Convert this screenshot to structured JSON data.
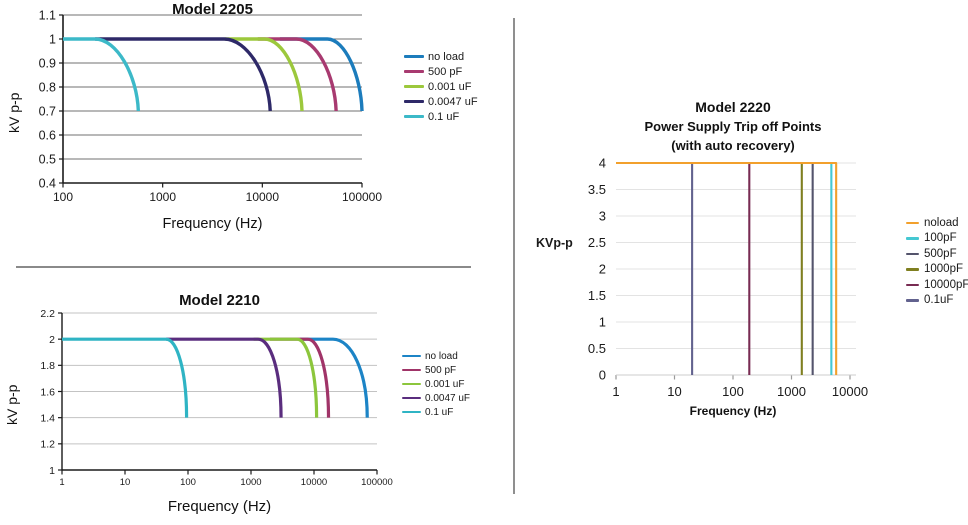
{
  "chart_data": [
    {
      "type": "line",
      "title": "Model 2205",
      "ylabel": "kV p-p",
      "xlabel": "Frequency (Hz)",
      "x_scale": "log",
      "xlim": [
        100,
        100000
      ],
      "ylim": [
        0.4,
        1.1
      ],
      "y_ticks": [
        1.1,
        1,
        0.9,
        0.8,
        0.7,
        0.6,
        0.5,
        0.4
      ],
      "x_ticks": [
        100,
        1000,
        10000,
        100000
      ],
      "grid": "horizontal",
      "legend_position": "right",
      "series": [
        {
          "name": "no load",
          "color": "#1C7CBC",
          "shape": "drop",
          "flat_from": 15000,
          "knee": 45000,
          "drop_to": 100000,
          "y_top": 1.0,
          "y_bottom": 0.7
        },
        {
          "name": "500 pF",
          "color": "#A83A70",
          "shape": "drop",
          "flat_from": 9000,
          "knee": 22000,
          "drop_to": 55000,
          "y_top": 1.0,
          "y_bottom": 0.7
        },
        {
          "name": "0.001 uF",
          "color": "#9CC83C",
          "shape": "drop",
          "flat_from": 4200,
          "knee": 10500,
          "drop_to": 25000,
          "y_top": 1.0,
          "y_bottom": 0.7
        },
        {
          "name": "0.0047 uF",
          "color": "#2E2968",
          "shape": "drop",
          "flat_from": 210,
          "knee": 4150,
          "drop_to": 12000,
          "y_top": 1.0,
          "y_bottom": 0.7
        },
        {
          "name": "0.1 uF",
          "color": "#3CB9C8",
          "shape": "drop",
          "flat_from": 100,
          "knee": 210,
          "drop_to": 570,
          "y_top": 1.0,
          "y_bottom": 0.7
        }
      ]
    },
    {
      "type": "line",
      "title": "Model 2210",
      "ylabel": "kV p-p",
      "xlabel": "Frequency (Hz)",
      "x_scale": "log",
      "xlim": [
        1,
        100000
      ],
      "ylim": [
        1,
        2.2
      ],
      "y_ticks": [
        2.2,
        2,
        1.8,
        1.6,
        1.4,
        1.2,
        1
      ],
      "x_ticks": [
        1,
        10,
        100,
        1000,
        10000,
        100000
      ],
      "grid": "horizontal",
      "legend_position": "right",
      "series": [
        {
          "name": "no load",
          "color": "#1C84C6",
          "shape": "drop",
          "flat_from": 6000,
          "knee": 20000,
          "drop_to": 70000,
          "y_top": 2.0,
          "y_bottom": 1.4
        },
        {
          "name": "500 pF",
          "color": "#A03468",
          "shape": "drop",
          "flat_from": 2000,
          "knee": 8000,
          "drop_to": 17000,
          "y_top": 2.0,
          "y_bottom": 1.4
        },
        {
          "name": "0.001 uF",
          "color": "#8CC63C",
          "shape": "drop",
          "flat_from": 1100,
          "knee": 5400,
          "drop_to": 11000,
          "y_top": 2.0,
          "y_bottom": 1.4
        },
        {
          "name": "0.0047 uF",
          "color": "#5A2D7E",
          "shape": "drop",
          "flat_from": 45,
          "knee": 1300,
          "drop_to": 3000,
          "y_top": 2.0,
          "y_bottom": 1.4
        },
        {
          "name": "0.1 uF",
          "color": "#2FB4C4",
          "shape": "drop",
          "flat_from": 1,
          "knee": 45,
          "drop_to": 95,
          "y_top": 2.0,
          "y_bottom": 1.4
        }
      ]
    },
    {
      "type": "line",
      "title": "Model 2220",
      "subtitle1": "Power Supply Trip off Points",
      "subtitle2": "(with auto recovery)",
      "ylabel": "KVp-p",
      "xlabel": "Frequency (Hz)",
      "x_scale": "log",
      "xlim": [
        1,
        10000
      ],
      "ylim": [
        0,
        4
      ],
      "y_ticks": [
        4,
        3.5,
        3,
        2.5,
        2,
        1.5,
        1,
        0.5,
        0
      ],
      "x_ticks": [
        1,
        10,
        100,
        1000,
        10000
      ],
      "grid": "horizontal",
      "legend_position": "right",
      "series": [
        {
          "name": "noload",
          "color": "#F2A02C",
          "shape": "hline_drop",
          "flat_from": 1,
          "drop_at": 5800,
          "y_top": 4,
          "y_bottom": 0
        },
        {
          "name": "100pF",
          "color": "#45C8D2",
          "shape": "vline",
          "x": 4800,
          "y_top": 4,
          "y_bottom": 0
        },
        {
          "name": "500pF",
          "color": "#54546C",
          "shape": "vline",
          "x": 2300,
          "y_top": 4,
          "y_bottom": 0
        },
        {
          "name": "1000pF",
          "color": "#7F7F20",
          "shape": "vline",
          "x": 1500,
          "y_top": 4,
          "y_bottom": 0
        },
        {
          "name": "10000pF",
          "color": "#782B52",
          "shape": "vline",
          "x": 190,
          "y_top": 4,
          "y_bottom": 0
        },
        {
          "name": "0.1uF",
          "color": "#62628E",
          "shape": "vline",
          "x": 20,
          "y_top": 4,
          "y_bottom": 0
        }
      ]
    }
  ]
}
